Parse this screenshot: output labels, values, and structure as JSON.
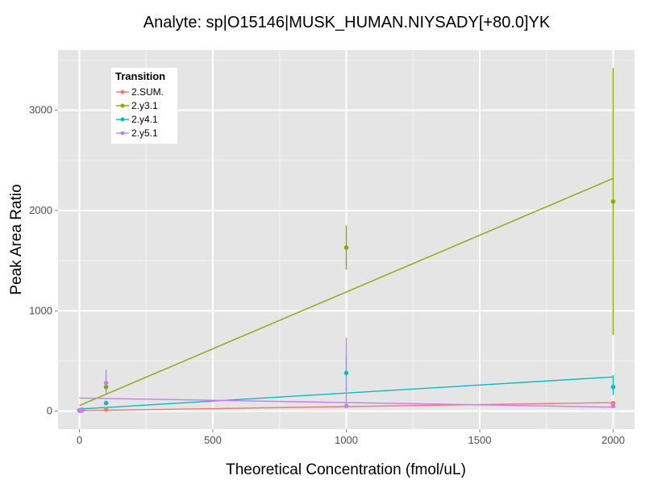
{
  "chart_data": {
    "type": "scatter",
    "title": "Analyte: sp|O15146|MUSK_HUMAN.NIYSADY[+80.0]YK",
    "xlabel": "Theoretical Concentration (fmol/uL)",
    "ylabel": "Peak Area Ratio",
    "xlim": [
      -80,
      2080
    ],
    "ylim": [
      -180,
      3600
    ],
    "xticks": [
      0,
      500,
      1000,
      1500,
      2000
    ],
    "yticks": [
      0,
      1000,
      2000,
      3000
    ],
    "grid": true,
    "background": "#e5e5e5",
    "legend": {
      "title": "Transition",
      "position": "top-left"
    },
    "series": [
      {
        "name": "2.SUM.",
        "color": "#f8766d",
        "points": [
          {
            "x": 0,
            "y": 5,
            "err": [
              0,
              10
            ]
          },
          {
            "x": 10,
            "y": 8,
            "err": [
              4,
              12
            ]
          },
          {
            "x": 100,
            "y": 15,
            "err": [
              10,
              20
            ]
          },
          {
            "x": 1000,
            "y": 50,
            "err": [
              35,
              65
            ]
          },
          {
            "x": 2000,
            "y": 80,
            "err": [
              60,
              100
            ]
          }
        ],
        "fit": [
          {
            "x": 0,
            "y": 5
          },
          {
            "x": 2000,
            "y": 85
          }
        ]
      },
      {
        "name": "2.y3.1",
        "color": "#7cae00",
        "points": [
          {
            "x": 0,
            "y": 10,
            "err": [
              0,
              20
            ]
          },
          {
            "x": 10,
            "y": 15,
            "err": [
              5,
              25
            ]
          },
          {
            "x": 100,
            "y": 240,
            "err": [
              190,
              300
            ]
          },
          {
            "x": 1000,
            "y": 1630,
            "err": [
              1410,
              1850
            ]
          },
          {
            "x": 2000,
            "y": 2090,
            "err": [
              760,
              3420
            ]
          }
        ],
        "fit": [
          {
            "x": 0,
            "y": 55
          },
          {
            "x": 2000,
            "y": 2320
          }
        ]
      },
      {
        "name": "2.y4.1",
        "color": "#00bfc4",
        "points": [
          {
            "x": 0,
            "y": 5,
            "err": [
              0,
              10
            ]
          },
          {
            "x": 10,
            "y": 6,
            "err": [
              2,
              10
            ]
          },
          {
            "x": 100,
            "y": 80,
            "err": [
              60,
              100
            ]
          },
          {
            "x": 1000,
            "y": 380,
            "err": [
              200,
              560
            ]
          },
          {
            "x": 2000,
            "y": 240,
            "err": [
              160,
              360
            ]
          }
        ],
        "fit": [
          {
            "x": 0,
            "y": 20
          },
          {
            "x": 2000,
            "y": 340
          }
        ]
      },
      {
        "name": "2.y5.1",
        "color": "#c77cff",
        "points": [
          {
            "x": 0,
            "y": 8,
            "err": [
              0,
              15
            ]
          },
          {
            "x": 10,
            "y": 10,
            "err": [
              5,
              15
            ]
          },
          {
            "x": 100,
            "y": 280,
            "err": [
              160,
              410
            ]
          },
          {
            "x": 1000,
            "y": 50,
            "err": [
              30,
              730
            ]
          },
          {
            "x": 2000,
            "y": 50,
            "err": [
              30,
              70
            ]
          }
        ],
        "fit": [
          {
            "x": 0,
            "y": 130
          },
          {
            "x": 2000,
            "y": 40
          }
        ]
      }
    ]
  }
}
